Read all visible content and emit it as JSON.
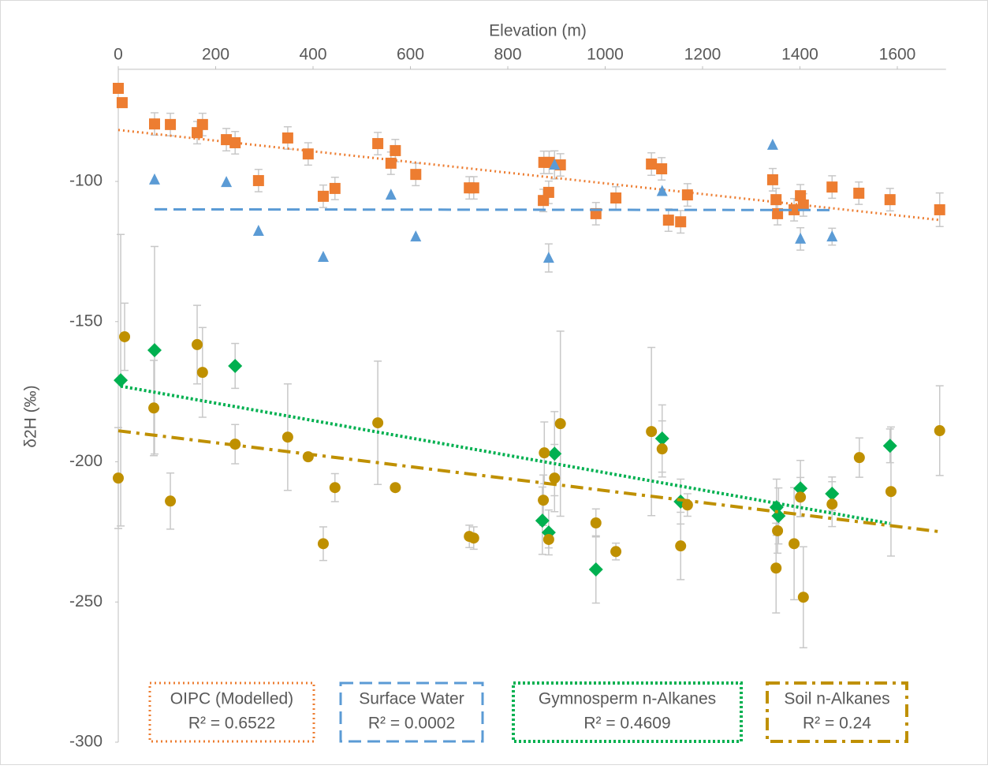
{
  "chart_data": {
    "type": "scatter",
    "x_label": "Elevation (m)",
    "y_label": "δ2H (‰)",
    "xlim": [
      0,
      1700
    ],
    "xticks": [
      0,
      200,
      400,
      600,
      800,
      1000,
      1200,
      1400,
      1600
    ],
    "ylim": [
      -300,
      -60
    ],
    "yticks": [
      -100,
      -150,
      -200,
      -250,
      -300
    ],
    "grid": false,
    "legend": "bottom",
    "series": [
      {
        "name": "OIPC (Modelled)",
        "trendline_label": "R² = 0.6522",
        "color": "#ed7d31",
        "marker": "square",
        "trendline": "dotted",
        "x": [
          0,
          8,
          74.5,
          107,
          162,
          173,
          222,
          240,
          348,
          390,
          288,
          421,
          445,
          533,
          560,
          569,
          611,
          721,
          730,
          874,
          885,
          873,
          884,
          908,
          981,
          1022,
          1095,
          1116,
          1130,
          1155,
          1169,
          1344,
          1351,
          1354,
          1388,
          1401,
          1407,
          1466,
          1521,
          1585,
          1687
        ],
        "values": [
          -66.8,
          -71.9,
          -79.5,
          -79.7,
          -82.6,
          -79.7,
          -85.1,
          -86.2,
          -84.5,
          -90.2,
          -99.7,
          -105.3,
          -102.5,
          -86.5,
          -93.5,
          -89.0,
          -97.5,
          -102.3,
          -102.3,
          -93.2,
          -93.2,
          -106.8,
          -103.9,
          -94.1,
          -111.5,
          -105.9,
          -93.8,
          -95.5,
          -113.8,
          -114.4,
          -104.8,
          -99.4,
          -106.5,
          -111.5,
          -110.1,
          -105.1,
          -108.4,
          -102.0,
          -104.2,
          -106.5,
          -110.1
        ],
        "errors": [
          0,
          0,
          4,
          4,
          4,
          4,
          4,
          4,
          4,
          4,
          4,
          4,
          4,
          4,
          4,
          4,
          4,
          4,
          4,
          4,
          4,
          4,
          4,
          4,
          4,
          4,
          4,
          4,
          4,
          4,
          4,
          4,
          4,
          4,
          4,
          4,
          4,
          4,
          4,
          4,
          6
        ]
      },
      {
        "name": "Surface Water",
        "trendline_label": "R² = 0.0002",
        "color": "#5b9bd5",
        "marker": "triangle",
        "trendline": "dashed",
        "x": [
          74.5,
          222,
          288,
          421,
          560,
          611,
          884,
          896,
          1117,
          1344,
          1401,
          1466
        ],
        "values": [
          -99.4,
          -100.3,
          -117.7,
          -127.0,
          -104.8,
          -119.7,
          -127.3,
          -94.1,
          -103.5,
          -87.0,
          -120.5,
          -119.7
        ],
        "errors": [
          0,
          0,
          0,
          0,
          0,
          0,
          5,
          5,
          0,
          0,
          4,
          3
        ]
      },
      {
        "name": "Gymnosperm n-Alkanes",
        "trendline_label": "R² = 0.4609",
        "color": "#00b050",
        "marker": "diamond",
        "trendline": "dense-dotted",
        "x": [
          5,
          74.5,
          240,
          871,
          884,
          896,
          981,
          1117,
          1155,
          1352,
          1356,
          1401,
          1466,
          1585
        ],
        "values": [
          -170.9,
          -160.2,
          -165.8,
          -221.0,
          -225.2,
          -197.1,
          -238.4,
          -191.7,
          -214.2,
          -216.2,
          -219.3,
          -209.5,
          -211.4,
          -194.3
        ],
        "errors": [
          52,
          37,
          8,
          12,
          8,
          15,
          12,
          12,
          8,
          10,
          10,
          10,
          6,
          6
        ]
      },
      {
        "name": "Soil n-Alkanes",
        "trendline_label": "R² = 0.24",
        "color": "#bf9000",
        "marker": "circle",
        "trendline": "dash-dot",
        "x": [
          0,
          13,
          73,
          107,
          162,
          173,
          240,
          348,
          390,
          445,
          421,
          533,
          569,
          721,
          730,
          875,
          873,
          884,
          896,
          908,
          981,
          1022,
          1095,
          1117,
          1155,
          1169,
          1351,
          1354,
          1388,
          1401,
          1407,
          1466,
          1522,
          1587,
          1687
        ],
        "values": [
          -205.8,
          -155.4,
          -180.8,
          -214.0,
          -158.2,
          -168.1,
          -193.7,
          -191.2,
          -198.2,
          -209.2,
          -229.2,
          -186.1,
          -209.2,
          -226.6,
          -227.2,
          -196.8,
          -213.7,
          -227.7,
          -205.8,
          -186.4,
          -221.8,
          -232.0,
          -189.2,
          -195.4,
          -230.0,
          -215.4,
          -237.9,
          -224.6,
          -229.2,
          -212.6,
          -248.3,
          -215.1,
          -198.5,
          -210.6,
          -188.9
        ],
        "errors": [
          18,
          12,
          17,
          10,
          14,
          16,
          7,
          19,
          0,
          5,
          6,
          22,
          0,
          4,
          4,
          11,
          9,
          3,
          12,
          33,
          5,
          3,
          30,
          10,
          12,
          4,
          16,
          8,
          20,
          7,
          18,
          8,
          7,
          23,
          16
        ]
      }
    ]
  }
}
